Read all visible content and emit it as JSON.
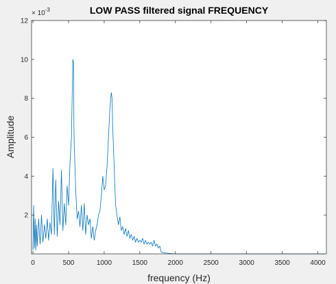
{
  "chart_data": {
    "type": "line",
    "title": "LOW PASS filtered signal FREQUENCY",
    "xlabel": "frequency (Hz)",
    "ylabel": "Amplitude",
    "xlim": [
      -20,
      4120
    ],
    "ylim": [
      0,
      12
    ],
    "y_multiplier": "× 10",
    "y_multiplier_exponent": "-3",
    "xticks": [
      0,
      500,
      1000,
      1500,
      2000,
      2500,
      3000,
      3500,
      4000
    ],
    "yticks": [
      2,
      4,
      6,
      8,
      10,
      12
    ],
    "color": "#0072BD",
    "grid": false,
    "series": [
      {
        "x": [
          0,
          10,
          20,
          30,
          40,
          50,
          60,
          80,
          100,
          120,
          140,
          160,
          180,
          200,
          220,
          240,
          260,
          280,
          300,
          320,
          340,
          360,
          380,
          400,
          420,
          440,
          460,
          480,
          500,
          520,
          540,
          550,
          560,
          570,
          575,
          580,
          590,
          600,
          620,
          640,
          660,
          680,
          700,
          720,
          740,
          760,
          780,
          800,
          820,
          840,
          860,
          880,
          900,
          920,
          940,
          960,
          980,
          1000,
          1020,
          1040,
          1060,
          1080,
          1100,
          1110,
          1120,
          1130,
          1140,
          1150,
          1160,
          1180,
          1200,
          1220,
          1240,
          1260,
          1280,
          1300,
          1320,
          1340,
          1360,
          1380,
          1400,
          1420,
          1440,
          1460,
          1480,
          1500,
          1520,
          1540,
          1560,
          1580,
          1600,
          1620,
          1640,
          1660,
          1680,
          1700,
          1720,
          1740,
          1760,
          1780,
          1800,
          1850,
          1900,
          1950,
          2000,
          2500,
          3000,
          3500,
          4000,
          4100
        ],
        "y": [
          0.2,
          2.5,
          0.3,
          1.8,
          0.2,
          1.5,
          0.4,
          1.8,
          0.5,
          2.0,
          0.6,
          1.5,
          0.8,
          1.8,
          0.7,
          1.6,
          1.0,
          4.4,
          1.0,
          3.8,
          0.9,
          2.7,
          1.5,
          4.3,
          1.2,
          2.6,
          1.5,
          3.5,
          2.5,
          4.7,
          6.0,
          8.0,
          10.0,
          9.8,
          6.5,
          5.5,
          4.5,
          3.3,
          1.8,
          2.2,
          1.4,
          2.5,
          1.2,
          2.6,
          1.0,
          2.0,
          1.5,
          1.8,
          0.8,
          1.4,
          0.7,
          1.2,
          1.5,
          2.0,
          2.2,
          3.0,
          4.0,
          3.3,
          3.5,
          4.5,
          6.0,
          7.5,
          8.3,
          8.0,
          6.5,
          5.5,
          4.5,
          3.5,
          2.5,
          2.0,
          1.5,
          1.9,
          1.2,
          1.4,
          1.0,
          1.3,
          0.9,
          1.2,
          0.8,
          1.0,
          0.7,
          0.9,
          0.6,
          0.8,
          0.6,
          0.7,
          0.6,
          0.8,
          0.5,
          0.7,
          0.5,
          0.6,
          0.5,
          0.6,
          0.4,
          0.7,
          0.4,
          0.5,
          0.3,
          0.4,
          0.1,
          0.05,
          0.03,
          0.01,
          0.0,
          0.0,
          0.0,
          0.0,
          0.0,
          0.0
        ]
      }
    ]
  }
}
